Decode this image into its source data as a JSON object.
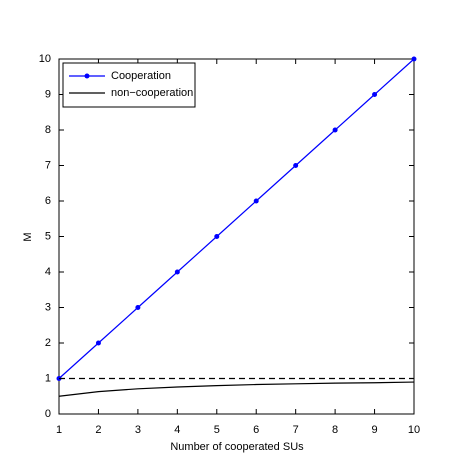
{
  "chart_data": {
    "type": "line",
    "x_label": "Number of cooperated SUs",
    "y_label": "M",
    "x": [
      1,
      2,
      3,
      4,
      5,
      6,
      7,
      8,
      9,
      10
    ],
    "series": [
      {
        "name": "Cooperation",
        "color": "#0000ff",
        "marker": "circle",
        "style": "solid",
        "values": [
          1,
          2,
          3,
          4,
          5,
          6,
          7,
          8,
          9,
          10
        ]
      },
      {
        "name": "non−cooperation",
        "color": "#000000",
        "style": "solid",
        "values": [
          0.5,
          0.63,
          0.71,
          0.76,
          0.8,
          0.83,
          0.85,
          0.87,
          0.88,
          0.9
        ]
      },
      {
        "color": "#000000",
        "style": "dashed",
        "values": [
          1,
          1,
          1,
          1,
          1,
          1,
          1,
          1,
          1,
          1
        ]
      }
    ],
    "xlim": [
      1,
      10
    ],
    "xticks": [
      1,
      2,
      3,
      4,
      5,
      6,
      7,
      8,
      9,
      10
    ],
    "ylim": [
      0,
      10
    ],
    "yticks": [
      0,
      1,
      2,
      3,
      4,
      5,
      6,
      7,
      8,
      9,
      10
    ],
    "legend": "upper-left",
    "grid": false
  }
}
